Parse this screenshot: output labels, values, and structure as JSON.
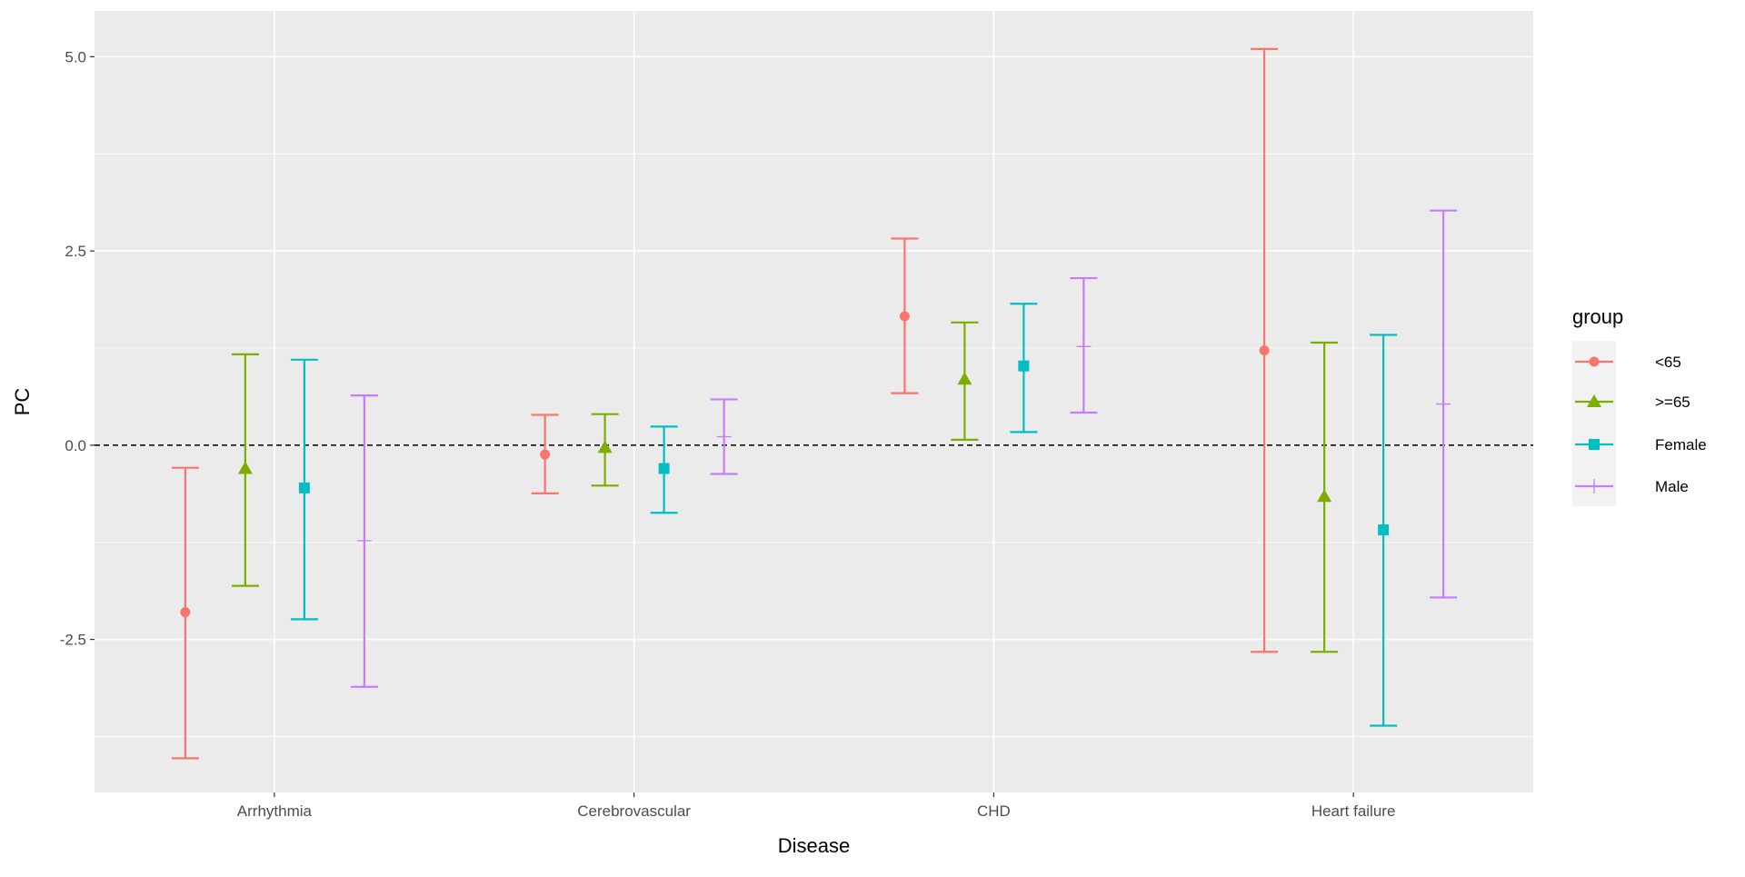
{
  "chart_data": {
    "type": "errorbar",
    "title": "",
    "xlabel": "Disease",
    "ylabel": "PC",
    "ylim": [
      -4.47,
      5.59
    ],
    "yticks": [
      -2.5,
      0.0,
      2.5,
      5.0
    ],
    "ytick_labels": [
      "-2.5",
      "0.0",
      "2.5",
      "5.0"
    ],
    "grid": true,
    "reference_line": {
      "y": 0,
      "style": "dashed",
      "color": "#000000"
    },
    "categories": [
      "Arrhythmia",
      "Cerebrovascular",
      "CHD",
      "Heart failure"
    ],
    "legend": {
      "title": "group",
      "placement": "right"
    },
    "series": [
      {
        "name": "<65",
        "color": "#F8766D",
        "marker": "circle",
        "values": [
          -2.15,
          -0.12,
          1.66,
          1.22
        ],
        "lower": [
          -4.03,
          -0.62,
          0.67,
          -2.66
        ],
        "upper": [
          -0.29,
          0.39,
          2.66,
          5.1
        ]
      },
      {
        "name": ">=65",
        "color": "#7CAE00",
        "marker": "triangle",
        "values": [
          -0.3,
          -0.03,
          0.85,
          -0.66
        ],
        "lower": [
          -1.81,
          -0.52,
          0.07,
          -2.66
        ],
        "upper": [
          1.17,
          0.4,
          1.58,
          1.32
        ]
      },
      {
        "name": "Female",
        "color": "#00BFC4",
        "marker": "square",
        "values": [
          -0.55,
          -0.3,
          1.02,
          -1.09
        ],
        "lower": [
          -2.24,
          -0.87,
          0.17,
          -3.61
        ],
        "upper": [
          1.1,
          0.24,
          1.82,
          1.42
        ]
      },
      {
        "name": "Male",
        "color": "#C77CFF",
        "marker": "plus",
        "values": [
          -1.23,
          0.11,
          1.27,
          0.53
        ],
        "lower": [
          -3.11,
          -0.37,
          0.42,
          -1.96
        ],
        "upper": [
          0.64,
          0.59,
          2.15,
          3.02
        ]
      }
    ]
  }
}
